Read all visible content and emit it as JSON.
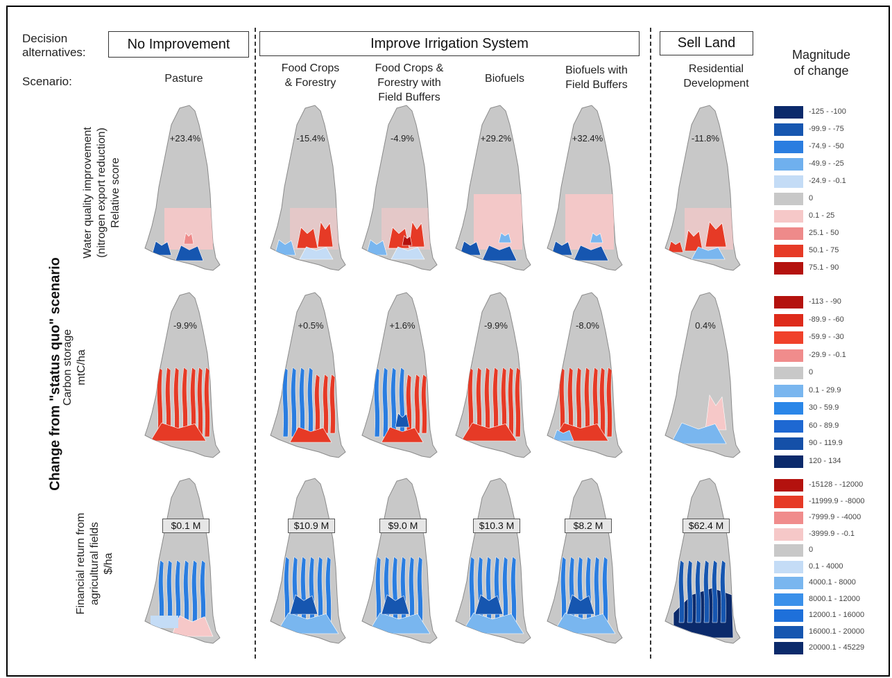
{
  "header": {
    "decision_label": "Decision\nalternatives:",
    "scenario_label": "Scenario:",
    "alternatives": [
      "No Improvement",
      "Improve Irrigation System",
      "Sell Land"
    ],
    "magnitude_label": "Magnitude\nof change"
  },
  "scenarios": [
    "Pasture",
    "Food Crops\n& Forestry",
    "Food Crops &\nForestry with\nField Buffers",
    "Biofuels",
    "Biofuels with\nField Buffers",
    "Residential\nDevelopment"
  ],
  "side_title": "Change from \"status quo\" scenario",
  "rows": [
    {
      "label": "Water quality improvement\n(nitrogen export reduction)\nRelative score",
      "values": [
        "+23.4%",
        "-15.4%",
        "-4.9%",
        "+29.2%",
        "+32.4%",
        "-11.8%"
      ]
    },
    {
      "label": "Carbon storage\nmtC/ha",
      "values": [
        "-9.9%",
        "+0.5%",
        "+1.6%",
        "-9.9%",
        "-8.0%",
        "0.4%"
      ]
    },
    {
      "label": "Financial return from\nagricultural fields\n$/ha",
      "values": [
        "$0.1 M",
        "$10.9 M",
        "$9.0 M",
        "$10.3 M",
        "$8.2 M",
        "$62.4 M"
      ]
    }
  ],
  "legend_water": [
    {
      "text": "-125 - -100",
      "color": "#0b2a6b"
    },
    {
      "text": "-99.9 - -75",
      "color": "#1656b0"
    },
    {
      "text": "-74.9 - -50",
      "color": "#2a7de0"
    },
    {
      "text": "-49.9 - -25",
      "color": "#6fb0ee"
    },
    {
      "text": "-24.9 - -0.1",
      "color": "#c4dcf6"
    },
    {
      "text": "0",
      "color": "#c8c8c8"
    },
    {
      "text": "0.1 - 25",
      "color": "#f6c8c8"
    },
    {
      "text": "25.1 - 50",
      "color": "#ee8a8a"
    },
    {
      "text": "50.1 - 75",
      "color": "#e63a26"
    },
    {
      "text": "75.1 - 90",
      "color": "#b4120e"
    }
  ],
  "legend_carbon": [
    {
      "text": "-113 - -90",
      "color": "#b4120e"
    },
    {
      "text": "-89.9 - -60",
      "color": "#de2a1a"
    },
    {
      "text": "-59.9 - -30",
      "color": "#f0412a"
    },
    {
      "text": "-29.9 - -0.1",
      "color": "#f08c8c"
    },
    {
      "text": "0",
      "color": "#c8c8c8"
    },
    {
      "text": "0.1 - 29.9",
      "color": "#79b6ef"
    },
    {
      "text": "30 - 59.9",
      "color": "#2a86e8"
    },
    {
      "text": "60 - 89.9",
      "color": "#1e68d2"
    },
    {
      "text": "90 - 119.9",
      "color": "#1550a8"
    },
    {
      "text": "120 - 134",
      "color": "#0b2a6b"
    }
  ],
  "legend_financial": [
    {
      "text": "-15128 - -12000",
      "color": "#b4120e"
    },
    {
      "text": "-11999.9 - -8000",
      "color": "#e63a26"
    },
    {
      "text": "-7999.9 - -4000",
      "color": "#f08c8c"
    },
    {
      "text": "-3999.9 - -0.1",
      "color": "#f6c8c8"
    },
    {
      "text": "0",
      "color": "#c8c8c8"
    },
    {
      "text": "0.1 - 4000",
      "color": "#c4dcf6"
    },
    {
      "text": "4000.1 - 8000",
      "color": "#79b6ef"
    },
    {
      "text": "8000.1 - 12000",
      "color": "#3a90ea"
    },
    {
      "text": "12000.1 - 16000",
      "color": "#1e70da"
    },
    {
      "text": "16000.1 - 20000",
      "color": "#1656b0"
    },
    {
      "text": "20000.1 - 45229",
      "color": "#0b2a6b"
    }
  ],
  "colors": {
    "land": "#c8c8c8",
    "outline": "#8a8a8a"
  }
}
